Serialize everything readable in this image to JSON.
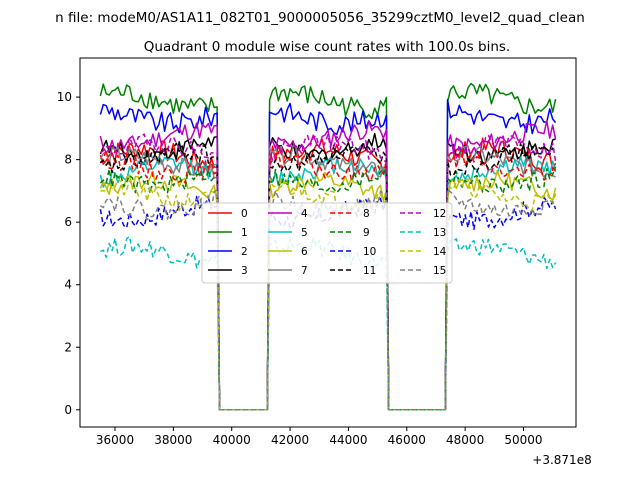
{
  "figure": {
    "suptitle": "n file: modeM0/AS1A11_082T01_9000005056_35299cztM0_level2_quad_clean"
  },
  "chart_data": {
    "type": "line",
    "title": "Quadrant 0 module wise count rates with 100.0s bins.",
    "xlabel": "",
    "ylabel": "",
    "x_offset_label": "+3.871e8",
    "xlim": [
      34800,
      51800
    ],
    "ylim": [
      -0.55,
      11.25
    ],
    "x_ticks": [
      36000,
      38000,
      40000,
      42000,
      44000,
      46000,
      48000,
      50000
    ],
    "y_ticks": [
      0,
      2,
      4,
      6,
      8,
      10
    ],
    "segments": [
      [
        35500,
        39500
      ],
      [
        41300,
        45300
      ],
      [
        47400,
        51100
      ]
    ],
    "gaps": [
      [
        39500,
        41300
      ],
      [
        45300,
        47400
      ]
    ],
    "legend_location": "center",
    "legend_columns": 4,
    "series": [
      {
        "name": "0",
        "color": "#ff0000",
        "style": "solid",
        "level": 8.1,
        "noise": 0.35
      },
      {
        "name": "1",
        "color": "#008000",
        "style": "solid",
        "level": 9.9,
        "noise": 0.35
      },
      {
        "name": "2",
        "color": "#0000ff",
        "style": "solid",
        "level": 9.4,
        "noise": 0.35
      },
      {
        "name": "3",
        "color": "#000000",
        "style": "solid",
        "level": 8.4,
        "noise": 0.3
      },
      {
        "name": "4",
        "color": "#bf00bf",
        "style": "solid",
        "level": 8.7,
        "noise": 0.3
      },
      {
        "name": "5",
        "color": "#00bfbf",
        "style": "solid",
        "level": 7.6,
        "noise": 0.3
      },
      {
        "name": "6",
        "color": "#bfbf00",
        "style": "solid",
        "level": 7.1,
        "noise": 0.3
      },
      {
        "name": "7",
        "color": "#808080",
        "style": "solid",
        "level": 7.9,
        "noise": 0.3
      },
      {
        "name": "8",
        "color": "#ff0000",
        "style": "dashed",
        "level": 7.8,
        "noise": 0.3
      },
      {
        "name": "9",
        "color": "#008000",
        "style": "dashed",
        "level": 7.4,
        "noise": 0.3
      },
      {
        "name": "10",
        "color": "#0000ff",
        "style": "dashed",
        "level": 6.3,
        "noise": 0.3
      },
      {
        "name": "11",
        "color": "#000000",
        "style": "dashed",
        "level": 8.0,
        "noise": 0.3
      },
      {
        "name": "12",
        "color": "#bf00bf",
        "style": "dashed",
        "level": 8.3,
        "noise": 0.3
      },
      {
        "name": "13",
        "color": "#00bfbf",
        "style": "dashed",
        "level": 5.0,
        "noise": 0.3
      },
      {
        "name": "14",
        "color": "#bfbf00",
        "style": "dashed",
        "level": 6.9,
        "noise": 0.3
      },
      {
        "name": "15",
        "color": "#808080",
        "style": "dashed",
        "level": 6.6,
        "noise": 0.3
      }
    ]
  }
}
